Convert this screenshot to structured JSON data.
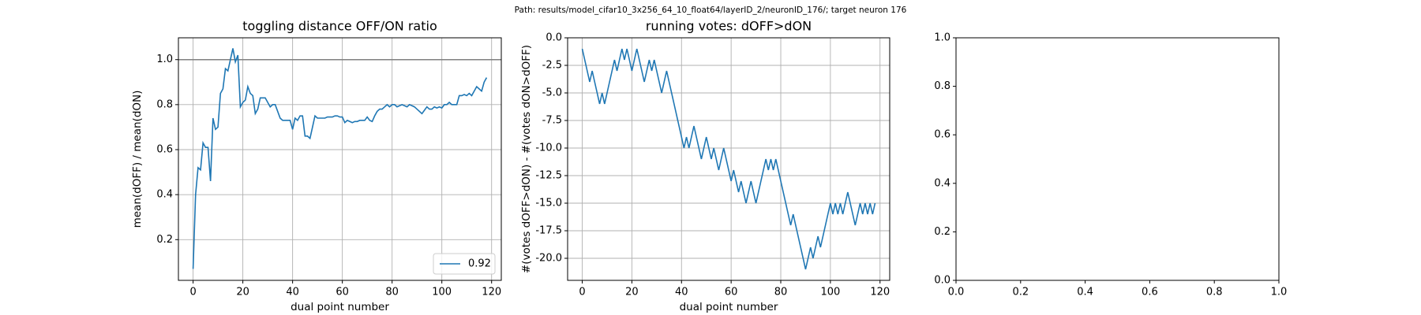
{
  "suptitle": "Path: results/model_cifar10_3x256_64_10_float64/layerID_2/neuronID_176/; target neuron 176",
  "chart_data": [
    {
      "type": "line",
      "title": "toggling distance OFF/ON ratio",
      "xlabel": "dual point number",
      "ylabel": "mean(dOFF) / mean(dON)",
      "x": [
        0,
        1,
        2,
        3,
        4,
        5,
        6,
        7,
        8,
        9,
        10,
        11,
        12,
        13,
        14,
        15,
        16,
        17,
        18,
        19,
        20,
        21,
        22,
        23,
        24,
        25,
        26,
        27,
        28,
        29,
        30,
        31,
        32,
        33,
        34,
        35,
        36,
        37,
        38,
        39,
        40,
        41,
        42,
        43,
        44,
        45,
        46,
        47,
        48,
        49,
        50,
        51,
        52,
        53,
        54,
        55,
        56,
        57,
        58,
        59,
        60,
        61,
        62,
        63,
        64,
        65,
        66,
        67,
        68,
        69,
        70,
        71,
        72,
        73,
        74,
        75,
        76,
        77,
        78,
        79,
        80,
        81,
        82,
        83,
        84,
        85,
        86,
        87,
        88,
        89,
        90,
        91,
        92,
        93,
        94,
        95,
        96,
        97,
        98,
        99,
        100,
        101,
        102,
        103,
        104,
        105,
        106,
        107,
        108,
        109,
        110,
        111,
        112,
        113,
        114,
        115,
        116,
        117,
        118
      ],
      "series": [
        {
          "name": "0.92",
          "color": "#1f77b4",
          "values": [
            0.07,
            0.4,
            0.52,
            0.51,
            0.63,
            0.61,
            0.61,
            0.46,
            0.74,
            0.69,
            0.7,
            0.85,
            0.87,
            0.96,
            0.95,
            1.0,
            1.05,
            0.99,
            1.02,
            0.79,
            0.81,
            0.82,
            0.88,
            0.85,
            0.84,
            0.76,
            0.78,
            0.83,
            0.83,
            0.83,
            0.81,
            0.79,
            0.8,
            0.8,
            0.77,
            0.74,
            0.73,
            0.73,
            0.73,
            0.73,
            0.69,
            0.74,
            0.73,
            0.75,
            0.75,
            0.66,
            0.66,
            0.65,
            0.7,
            0.75,
            0.74,
            0.74,
            0.74,
            0.74,
            0.745,
            0.745,
            0.745,
            0.75,
            0.75,
            0.745,
            0.745,
            0.72,
            0.73,
            0.725,
            0.72,
            0.725,
            0.725,
            0.73,
            0.73,
            0.73,
            0.745,
            0.73,
            0.725,
            0.75,
            0.77,
            0.78,
            0.78,
            0.79,
            0.8,
            0.79,
            0.8,
            0.8,
            0.79,
            0.795,
            0.8,
            0.795,
            0.79,
            0.8,
            0.795,
            0.79,
            0.78,
            0.77,
            0.76,
            0.775,
            0.79,
            0.78,
            0.78,
            0.79,
            0.785,
            0.79,
            0.785,
            0.8,
            0.8,
            0.81,
            0.8,
            0.8,
            0.8,
            0.84,
            0.84,
            0.845,
            0.84,
            0.85,
            0.84,
            0.86,
            0.88,
            0.87,
            0.86,
            0.9,
            0.92
          ]
        }
      ],
      "reference_line": 1.0,
      "reference_color": "#808080",
      "xlim": [
        -5.9,
        123.9
      ],
      "xticks": [
        0,
        20,
        40,
        60,
        80,
        100,
        120
      ],
      "ylim": [
        0.019,
        1.097
      ],
      "yticks": [
        0.2,
        0.4,
        0.6,
        0.8,
        {
          "value": 1.0,
          "label": "1.0"
        }
      ],
      "grid": true,
      "legend": "lower right"
    },
    {
      "type": "line",
      "title": "running votes: dOFF>dON",
      "xlabel": "dual point number",
      "ylabel": "#(votes dOFF>dON) - #(votes dON>dOFF)",
      "x": [
        0,
        1,
        2,
        3,
        4,
        5,
        6,
        7,
        8,
        9,
        10,
        11,
        12,
        13,
        14,
        15,
        16,
        17,
        18,
        19,
        20,
        21,
        22,
        23,
        24,
        25,
        26,
        27,
        28,
        29,
        30,
        31,
        32,
        33,
        34,
        35,
        36,
        37,
        38,
        39,
        40,
        41,
        42,
        43,
        44,
        45,
        46,
        47,
        48,
        49,
        50,
        51,
        52,
        53,
        54,
        55,
        56,
        57,
        58,
        59,
        60,
        61,
        62,
        63,
        64,
        65,
        66,
        67,
        68,
        69,
        70,
        71,
        72,
        73,
        74,
        75,
        76,
        77,
        78,
        79,
        80,
        81,
        82,
        83,
        84,
        85,
        86,
        87,
        88,
        89,
        90,
        91,
        92,
        93,
        94,
        95,
        96,
        97,
        98,
        99,
        100,
        101,
        102,
        103,
        104,
        105,
        106,
        107,
        108,
        109,
        110,
        111,
        112,
        113,
        114,
        115,
        116,
        117,
        118
      ],
      "series": [
        {
          "color": "#1f77b4",
          "values": [
            -1,
            -2,
            -3,
            -4,
            -3,
            -4,
            -5,
            -6,
            -5,
            -6,
            -5,
            -4,
            -3,
            -2,
            -3,
            -2,
            -1,
            -2,
            -1,
            -2,
            -3,
            -2,
            -1,
            -2,
            -3,
            -4,
            -3,
            -2,
            -3,
            -2,
            -3,
            -4,
            -5,
            -4,
            -3,
            -4,
            -5,
            -6,
            -7,
            -8,
            -9,
            -10,
            -9,
            -10,
            -9,
            -8,
            -9,
            -10,
            -11,
            -10,
            -9,
            -10,
            -11,
            -10,
            -11,
            -12,
            -11,
            -10,
            -11,
            -12,
            -13,
            -12,
            -13,
            -14,
            -13,
            -14,
            -15,
            -14,
            -13,
            -14,
            -15,
            -14,
            -13,
            -12,
            -11,
            -12,
            -11,
            -12,
            -11,
            -12,
            -13,
            -14,
            -15,
            -16,
            -17,
            -16,
            -17,
            -18,
            -19,
            -20,
            -21,
            -20,
            -19,
            -20,
            -19,
            -18,
            -19,
            -18,
            -17,
            -16,
            -15,
            -16,
            -15,
            -16,
            -15,
            -16,
            -15,
            -14,
            -15,
            -16,
            -17,
            -16,
            -15,
            -16,
            -15,
            -16,
            -15,
            -16,
            -15
          ]
        }
      ],
      "xlim": [
        -5.9,
        123.9
      ],
      "xticks": [
        0,
        20,
        40,
        60,
        80,
        100,
        120
      ],
      "ylim": [
        -22,
        0
      ],
      "yticks": [
        {
          "value": 0,
          "label": "0.0"
        },
        -2.5,
        {
          "value": -5,
          "label": "-5.0"
        },
        -7.5,
        {
          "value": -10,
          "label": "-10.0"
        },
        -12.5,
        {
          "value": -15,
          "label": "-15.0"
        },
        -17.5,
        {
          "value": -20,
          "label": "-20.0"
        }
      ],
      "grid": true
    },
    {
      "type": "empty",
      "xlim": [
        0,
        1
      ],
      "xticks": [
        {
          "value": 0,
          "label": "0.0"
        },
        0.2,
        0.4,
        0.6,
        0.8,
        {
          "value": 1,
          "label": "1.0"
        }
      ],
      "ylim": [
        0,
        1
      ],
      "yticks": [
        {
          "value": 0,
          "label": "0.0"
        },
        0.2,
        0.4,
        0.6,
        0.8,
        {
          "value": 1,
          "label": "1.0"
        }
      ],
      "grid": false
    }
  ]
}
